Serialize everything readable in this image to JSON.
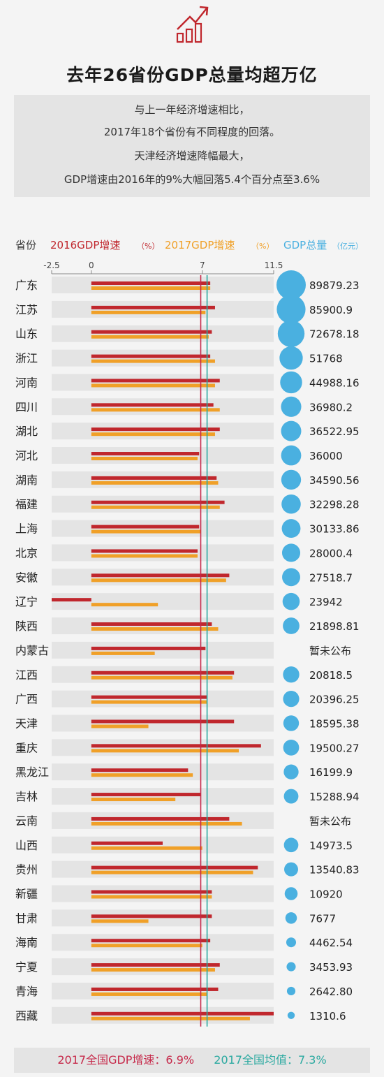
{
  "title": "去年26省份GDP总量均超万亿",
  "intro": [
    "与上一年经济增速相比，",
    "2017年18个省份有不同程度的回落。",
    "天津经济增速降幅最大，",
    "GDP增速由2016年的9%大幅回落5.4个百分点至3.6%"
  ],
  "header": {
    "province": "省份",
    "gdp2016": "2016GDP增速",
    "gdp2017": "2017GDP增速",
    "pct_unit": "（%）",
    "total": "GDP总量",
    "total_unit": "（亿元）"
  },
  "colors": {
    "red": "#c0272d",
    "orange": "#f0a028",
    "blue": "#4ab0e0",
    "teal": "#2aa9a0",
    "pink": "#c6294a",
    "row_bg": "#e4e4e4"
  },
  "icon": "growth-chart-icon",
  "chart_data": {
    "type": "bar",
    "axis_ticks": [
      "-2.5",
      "0",
      "7",
      "11.5"
    ],
    "xlim": [
      -2.5,
      11.5
    ],
    "reference_lines": [
      {
        "name": "2017全国GDP增速",
        "value": 6.9,
        "color": "#c6294a"
      },
      {
        "name": "2017全国均值",
        "value": 7.3,
        "color": "#2aa9a0"
      }
    ],
    "categories": [
      "广东",
      "江苏",
      "山东",
      "浙江",
      "河南",
      "四川",
      "湖北",
      "河北",
      "湖南",
      "福建",
      "上海",
      "北京",
      "安徽",
      "辽宁",
      "陕西",
      "内蒙古",
      "江西",
      "广西",
      "天津",
      "重庆",
      "黑龙江",
      "吉林",
      "云南",
      "山西",
      "贵州",
      "新疆",
      "甘肃",
      "海南",
      "宁夏",
      "青海",
      "西藏"
    ],
    "series": [
      {
        "name": "2016GDP增速",
        "values": [
          7.5,
          7.8,
          7.6,
          7.5,
          8.1,
          7.7,
          8.1,
          6.8,
          7.9,
          8.4,
          6.8,
          6.7,
          8.7,
          -2.5,
          7.6,
          7.2,
          9.0,
          7.3,
          9.0,
          10.7,
          6.1,
          6.9,
          8.7,
          4.5,
          10.5,
          7.6,
          7.6,
          7.5,
          8.1,
          8.0,
          11.5
        ]
      },
      {
        "name": "2017GDP增速",
        "values": [
          7.5,
          7.2,
          7.4,
          7.8,
          7.8,
          8.1,
          7.8,
          6.7,
          8.0,
          8.1,
          6.9,
          6.7,
          8.5,
          4.2,
          8.0,
          4.0,
          8.9,
          7.3,
          3.6,
          9.3,
          6.4,
          5.3,
          9.5,
          7.0,
          10.2,
          7.6,
          3.6,
          7.0,
          7.8,
          7.3,
          10.0
        ]
      }
    ],
    "gdp_total": [
      "89879.23",
      "85900.9",
      "72678.18",
      "51768",
      "44988.16",
      "36980.2",
      "36522.95",
      "36000",
      "34590.56",
      "32298.28",
      "30133.86",
      "28000.4",
      "27518.7",
      "23942",
      "21898.81",
      "暂未公布",
      "20818.5",
      "20396.25",
      "18595.38",
      "19500.27",
      "16199.9",
      "15288.94",
      "暂未公布",
      "14973.5",
      "13540.83",
      "10920",
      "7677",
      "4462.54",
      "3453.93",
      "2642.80",
      "1310.6"
    ],
    "gdp_values": [
      89879.23,
      85900.9,
      72678.18,
      51768,
      44988.16,
      36980.2,
      36522.95,
      36000,
      34590.56,
      32298.28,
      30133.86,
      28000.4,
      27518.7,
      23942,
      21898.81,
      null,
      20818.5,
      20396.25,
      18595.38,
      19500.27,
      16199.9,
      15288.94,
      null,
      14973.5,
      13540.83,
      10920,
      7677,
      4462.54,
      3453.93,
      2642.8,
      1310.6
    ]
  },
  "footer": {
    "national": "2017全国GDP增速：6.9%",
    "average": "2017全国均值：7.3%"
  }
}
